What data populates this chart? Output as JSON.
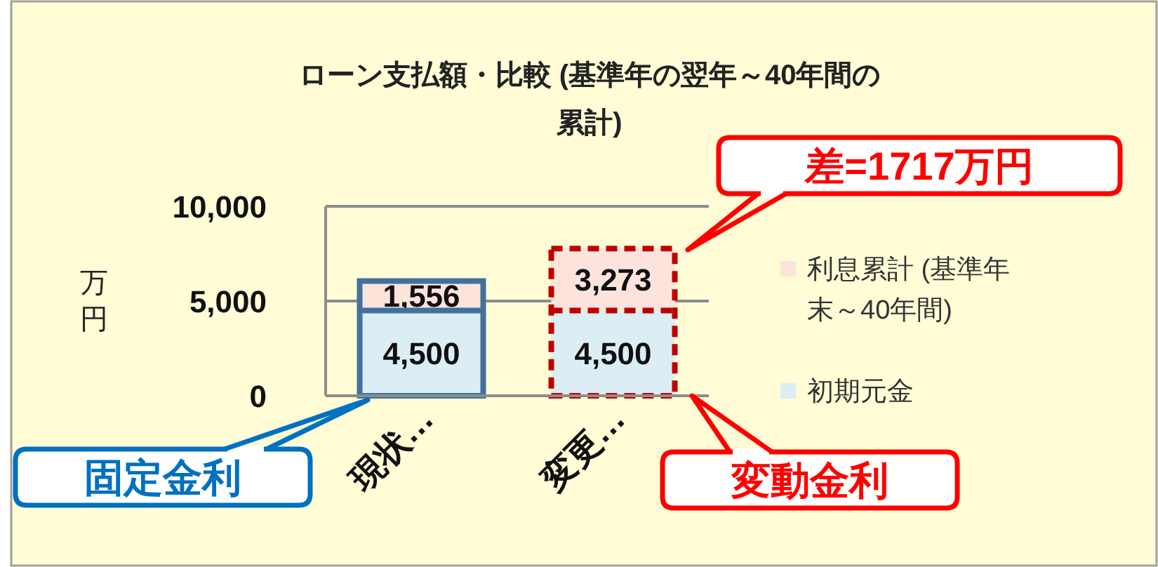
{
  "chart_data": {
    "type": "bar",
    "stacked": true,
    "title": "ローン支払額・比較 (基準年の翌年～40年間の累計)",
    "ylabel": "万円",
    "categories": [
      "現状…",
      "変更…"
    ],
    "series": [
      {
        "name": "初期元金",
        "color": "#dbeef4",
        "values": [
          4500,
          4500
        ],
        "value_labels": [
          "4,500",
          "4,500"
        ]
      },
      {
        "name": "利息累計 (基準年末～40年間)",
        "color": "#fce4dc",
        "values": [
          1556,
          3273
        ],
        "value_labels": [
          "1,556",
          "3,273"
        ]
      }
    ],
    "ylim": [
      0,
      10000
    ],
    "yticks": [
      {
        "value": 0,
        "label": "0"
      },
      {
        "value": 5000,
        "label": "5,000"
      },
      {
        "value": 10000,
        "label": "10,000"
      }
    ],
    "grid": "y",
    "legend": "right",
    "annotations": [
      "差=1717万円",
      "固定金利",
      "変動金利"
    ]
  }
}
